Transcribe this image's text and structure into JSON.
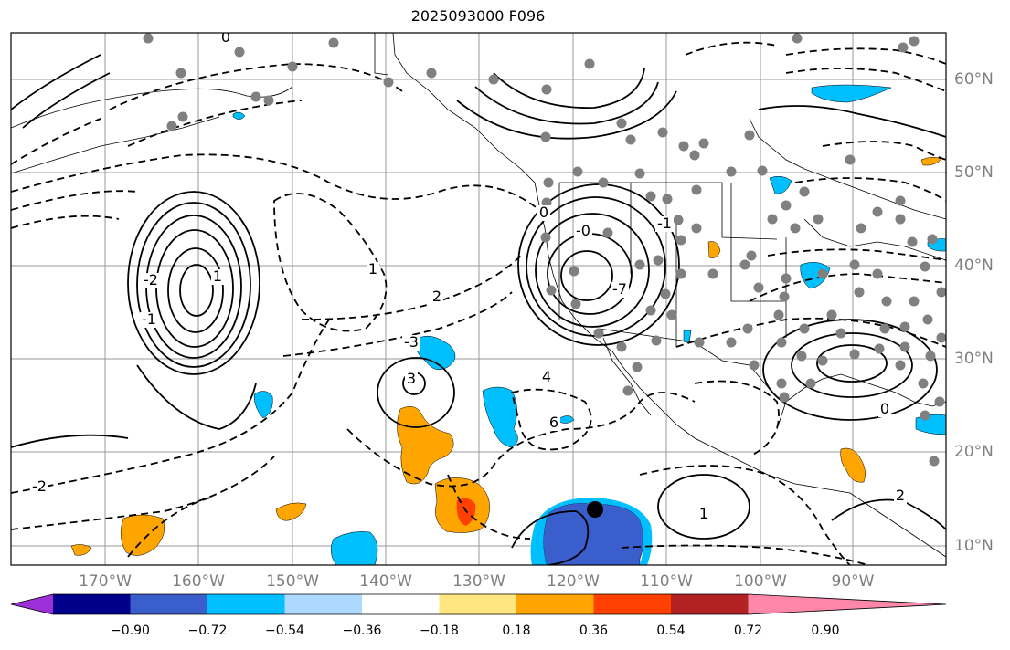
{
  "title": "2025093000 F096",
  "axes": {
    "lon_labels": [
      "170°W",
      "160°W",
      "150°W",
      "140°W",
      "130°W",
      "120°W",
      "110°W",
      "100°W",
      "90°W"
    ],
    "lat_labels": [
      "60°N",
      "50°N",
      "40°N",
      "30°N",
      "20°N",
      "10°N"
    ]
  },
  "colorbar": {
    "ticks": [
      "−0.90",
      "−0.72",
      "−0.54",
      "−0.36",
      "−0.18",
      "0.18",
      "0.36",
      "0.54",
      "0.72",
      "0.90"
    ],
    "colors": [
      "#9b30d8",
      "#00008b",
      "#3a5fcd",
      "#00bfff",
      "#add8ff",
      "#ffffff",
      "#ffe680",
      "#ffa500",
      "#ff4000",
      "#b22222",
      "#ff88aa"
    ]
  },
  "contour_labels": [
    "0",
    "-1",
    "-2",
    "-3",
    "1",
    "2",
    "3",
    "4",
    "6",
    "-0",
    "-7",
    "0",
    "1",
    "-2",
    "-1",
    "0",
    "1",
    "2"
  ],
  "marker": {
    "name": "storm-center",
    "color": "#000000"
  },
  "colors": {
    "shade_blue": "#00bfff",
    "shade_dark_blue": "#3a5fcd",
    "shade_orange": "#ffa500",
    "shade_red": "#ff4000",
    "station": "#808080"
  }
}
